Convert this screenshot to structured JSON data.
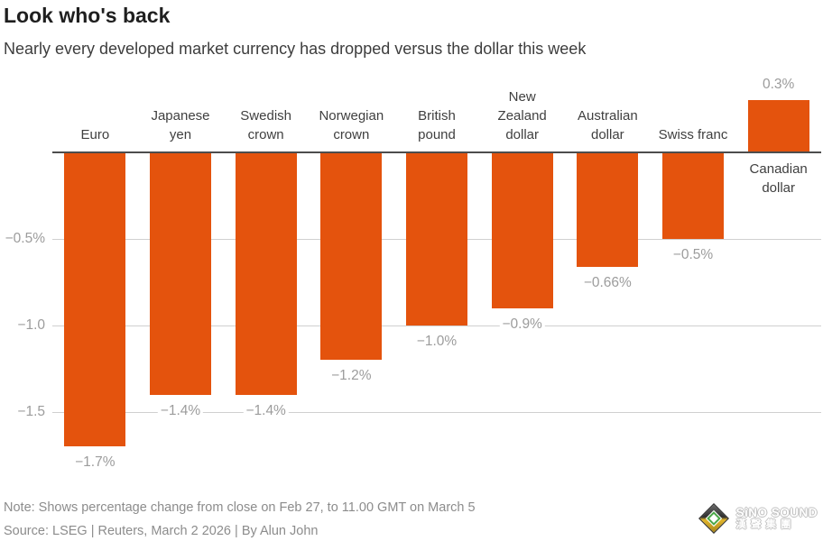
{
  "header": {
    "title": "Look who's back",
    "subtitle": "Nearly every developed market currency has dropped versus the dollar this week"
  },
  "chart_data": {
    "type": "bar",
    "title": "Look who's back",
    "subtitle": "Nearly every developed market currency has dropped versus the dollar this week",
    "unit": "% change vs US dollar",
    "bar_color": "#E4530D",
    "ylim": [
      -1.85,
      0.45
    ],
    "grid": "horizontal",
    "categories": [
      "Euro",
      "Japanese yen",
      "Swedish crown",
      "Norwegian crown",
      "British pound",
      "New Zealand dollar",
      "Australian dollar",
      "Swiss franc",
      "Canadian dollar"
    ],
    "values": [
      -1.7,
      -1.4,
      -1.4,
      -1.2,
      -1.0,
      -0.9,
      -0.66,
      -0.5,
      0.3
    ],
    "points": [
      {
        "label": "Euro",
        "label_lines": [
          "Euro"
        ],
        "value": -1.7,
        "value_label": "−1.7%"
      },
      {
        "label": "Japanese yen",
        "label_lines": [
          "Japanese",
          "yen"
        ],
        "value": -1.4,
        "value_label": "−1.4%"
      },
      {
        "label": "Swedish crown",
        "label_lines": [
          "Swedish",
          "crown"
        ],
        "value": -1.4,
        "value_label": "−1.4%"
      },
      {
        "label": "Norwegian crown",
        "label_lines": [
          "Norwegian",
          "crown"
        ],
        "value": -1.2,
        "value_label": "−1.2%"
      },
      {
        "label": "British pound",
        "label_lines": [
          "British",
          "pound"
        ],
        "value": -1.0,
        "value_label": "−1.0%"
      },
      {
        "label": "New Zealand dollar",
        "label_lines": [
          "New",
          "Zealand",
          "dollar"
        ],
        "value": -0.9,
        "value_label": "−0.9%"
      },
      {
        "label": "Australian dollar",
        "label_lines": [
          "Australian",
          "dollar"
        ],
        "value": -0.66,
        "value_label": "−0.66%"
      },
      {
        "label": "Swiss franc",
        "label_lines": [
          "Swiss franc"
        ],
        "value": -0.5,
        "value_label": "−0.5%"
      },
      {
        "label": "Canadian dollar",
        "label_lines": [
          "Canadian",
          "dollar"
        ],
        "value": 0.3,
        "value_label": "0.3%"
      }
    ],
    "yticks": [
      {
        "value": -0.5,
        "label": "−0.5%"
      },
      {
        "value": -1.0,
        "label": "−1.0"
      },
      {
        "value": -1.5,
        "label": "−1.5"
      }
    ]
  },
  "footer": {
    "note": "Note: Shows percentage change from close on Feb 27, to 11.00 GMT on March 5",
    "source": "Source: LSEG | Reuters, March 2 2026 | By Alun John"
  },
  "watermark": {
    "brand": "SiNO SOUND",
    "brand_cn": "漢聲集團"
  },
  "colors": {
    "bar": "#E4530D",
    "baseline": "#4d4d4d",
    "gridline": "#d0d0d0",
    "axis_text": "#9c9c9c",
    "category_text": "#3f3f3f"
  }
}
